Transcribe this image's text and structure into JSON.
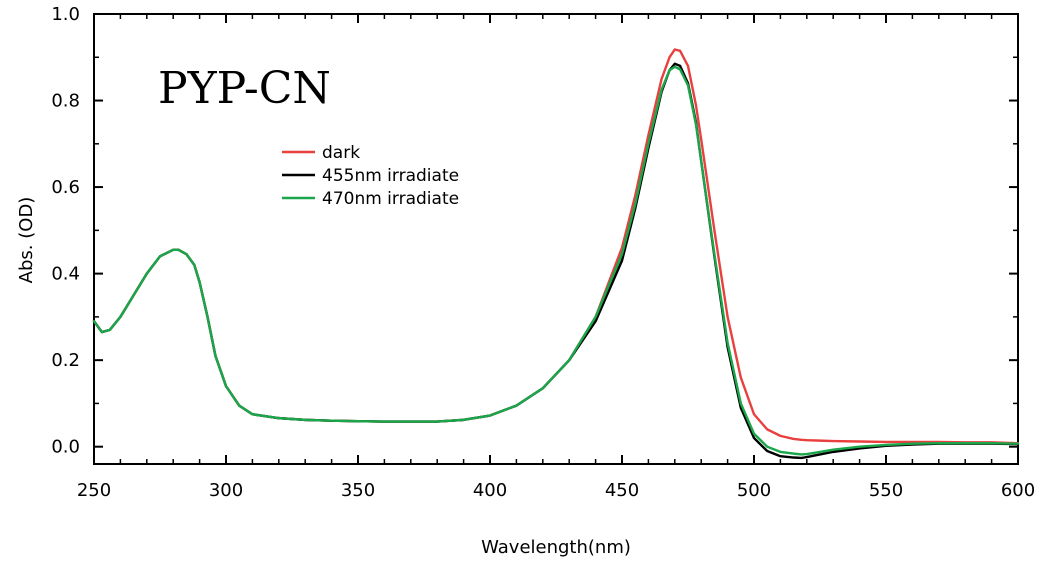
{
  "chart_data": {
    "type": "line",
    "title": "PYP-CN",
    "xlabel": "Wavelength(nm)",
    "ylabel": "Abs. (OD)",
    "xlim": [
      250,
      600
    ],
    "ylim": [
      -0.04,
      1.0
    ],
    "xticks": [
      250,
      300,
      350,
      400,
      450,
      500,
      550,
      600
    ],
    "xtick_labels": [
      "250",
      "300",
      "350",
      "400",
      "450",
      "500",
      "550",
      "600"
    ],
    "yticks": [
      0.0,
      0.2,
      0.4,
      0.6,
      0.8,
      1.0
    ],
    "ytick_labels": [
      "0.0",
      "0.2",
      "0.4",
      "0.6",
      "0.8",
      "1.0"
    ],
    "grid": false,
    "legend_position": "upper-left",
    "x": [
      250,
      253,
      256,
      260,
      265,
      270,
      275,
      280,
      282,
      285,
      288,
      290,
      293,
      296,
      300,
      305,
      310,
      320,
      330,
      340,
      350,
      360,
      370,
      380,
      390,
      400,
      410,
      420,
      430,
      440,
      450,
      455,
      460,
      465,
      468,
      470,
      472,
      475,
      478,
      480,
      485,
      490,
      495,
      500,
      505,
      510,
      515,
      518,
      520,
      525,
      530,
      540,
      550,
      560,
      570,
      580,
      590,
      600
    ],
    "series": [
      {
        "name": "dark",
        "color": "#e8403f",
        "values": [
          0.29,
          0.265,
          0.27,
          0.3,
          0.35,
          0.4,
          0.44,
          0.455,
          0.455,
          0.445,
          0.42,
          0.38,
          0.3,
          0.21,
          0.14,
          0.095,
          0.075,
          0.066,
          0.062,
          0.06,
          0.059,
          0.058,
          0.058,
          0.058,
          0.062,
          0.072,
          0.095,
          0.135,
          0.2,
          0.3,
          0.46,
          0.58,
          0.72,
          0.85,
          0.9,
          0.918,
          0.915,
          0.88,
          0.79,
          0.71,
          0.5,
          0.3,
          0.16,
          0.075,
          0.04,
          0.025,
          0.018,
          0.016,
          0.015,
          0.014,
          0.013,
          0.012,
          0.011,
          0.011,
          0.011,
          0.01,
          0.01,
          0.008
        ]
      },
      {
        "name": "455nm irradiate",
        "color": "#000000",
        "values": [
          0.29,
          0.265,
          0.27,
          0.3,
          0.35,
          0.4,
          0.44,
          0.455,
          0.455,
          0.445,
          0.42,
          0.38,
          0.3,
          0.21,
          0.14,
          0.095,
          0.075,
          0.066,
          0.062,
          0.06,
          0.059,
          0.058,
          0.058,
          0.058,
          0.062,
          0.072,
          0.095,
          0.135,
          0.2,
          0.29,
          0.43,
          0.55,
          0.69,
          0.82,
          0.87,
          0.885,
          0.88,
          0.84,
          0.75,
          0.66,
          0.44,
          0.23,
          0.09,
          0.02,
          -0.01,
          -0.022,
          -0.025,
          -0.026,
          -0.024,
          -0.018,
          -0.012,
          -0.004,
          0.002,
          0.005,
          0.007,
          0.007,
          0.007,
          0.006
        ]
      },
      {
        "name": "470nm irradiate",
        "color": "#1aa64a",
        "values": [
          0.29,
          0.265,
          0.27,
          0.3,
          0.35,
          0.4,
          0.44,
          0.455,
          0.455,
          0.445,
          0.42,
          0.38,
          0.3,
          0.21,
          0.14,
          0.095,
          0.075,
          0.066,
          0.062,
          0.06,
          0.059,
          0.058,
          0.058,
          0.058,
          0.062,
          0.072,
          0.095,
          0.135,
          0.2,
          0.3,
          0.445,
          0.56,
          0.7,
          0.825,
          0.87,
          0.878,
          0.872,
          0.835,
          0.745,
          0.66,
          0.445,
          0.24,
          0.1,
          0.03,
          0.0,
          -0.012,
          -0.016,
          -0.018,
          -0.017,
          -0.012,
          -0.007,
          0.0,
          0.004,
          0.007,
          0.008,
          0.008,
          0.008,
          0.007
        ]
      }
    ]
  }
}
